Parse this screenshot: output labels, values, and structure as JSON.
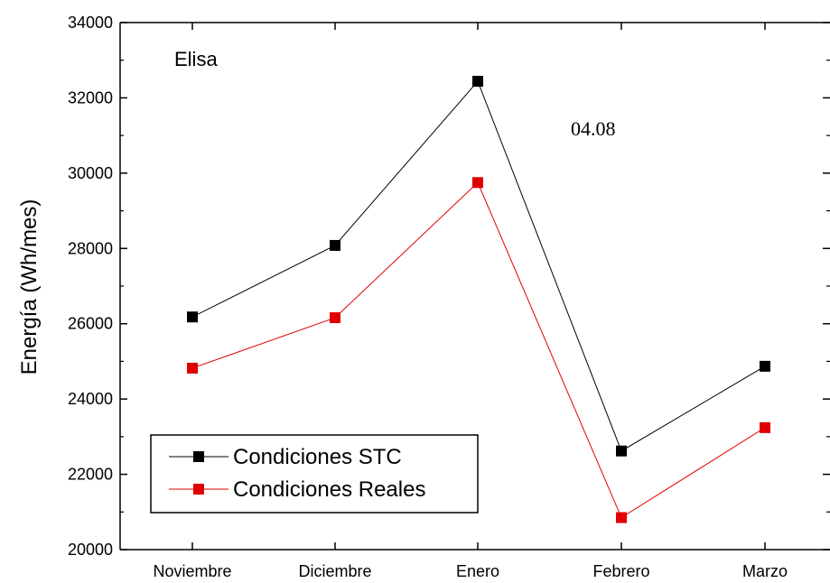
{
  "chart_data": {
    "type": "line",
    "title": "",
    "xlabel": "",
    "ylabel": "Energía (Wh/mes)",
    "categories": [
      "Noviembre",
      "Diciembre",
      "Enero",
      "Febrero",
      "Marzo"
    ],
    "ylim": [
      20000,
      34000
    ],
    "yticks": [
      20000,
      22000,
      24000,
      26000,
      28000,
      30000,
      32000,
      34000
    ],
    "grid": false,
    "legend_position": "bottom-left",
    "series": [
      {
        "name": "Condiciones STC",
        "color": "#000000",
        "marker": "square",
        "values": [
          26180,
          28080,
          32440,
          22620,
          24870
        ]
      },
      {
        "name": "Condiciones Reales",
        "color": "#e00000",
        "marker": "square",
        "values": [
          24820,
          26160,
          29750,
          20850,
          23240
        ]
      }
    ],
    "annotations": [
      {
        "text": "Elisa",
        "position": "top-left"
      },
      {
        "text": "04.08",
        "position": "top-right"
      }
    ]
  }
}
